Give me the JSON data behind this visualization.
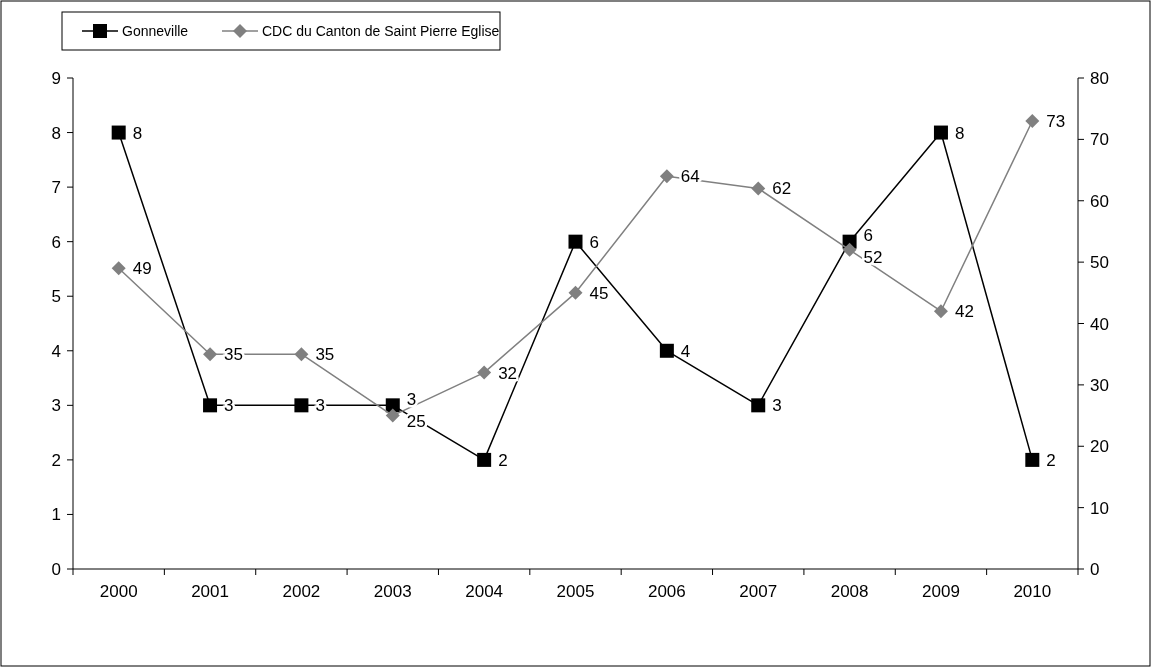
{
  "chart_data": {
    "type": "line",
    "categories": [
      "2000",
      "2001",
      "2002",
      "2003",
      "2004",
      "2005",
      "2006",
      "2007",
      "2008",
      "2009",
      "2010"
    ],
    "series": [
      {
        "name": "Gonneville",
        "color": "#000000",
        "marker": "square",
        "values": [
          8,
          3,
          3,
          3,
          2,
          6,
          4,
          3,
          6,
          8,
          2
        ]
      },
      {
        "name": "CDC du Canton de Saint Pierre Eglise",
        "color": "#808080",
        "marker": "diamond",
        "axis": "y2",
        "values": [
          49,
          35,
          35,
          25,
          32,
          45,
          64,
          62,
          52,
          42,
          73
        ]
      }
    ],
    "ylim": [
      0,
      9
    ],
    "yticks": [
      0,
      1,
      2,
      3,
      4,
      5,
      6,
      7,
      8,
      9
    ],
    "y2lim": [
      0,
      80
    ],
    "y2ticks": [
      0,
      10,
      20,
      30,
      40,
      50,
      60,
      70,
      80
    ],
    "data_labels": true,
    "legend": "top",
    "grid": false
  }
}
